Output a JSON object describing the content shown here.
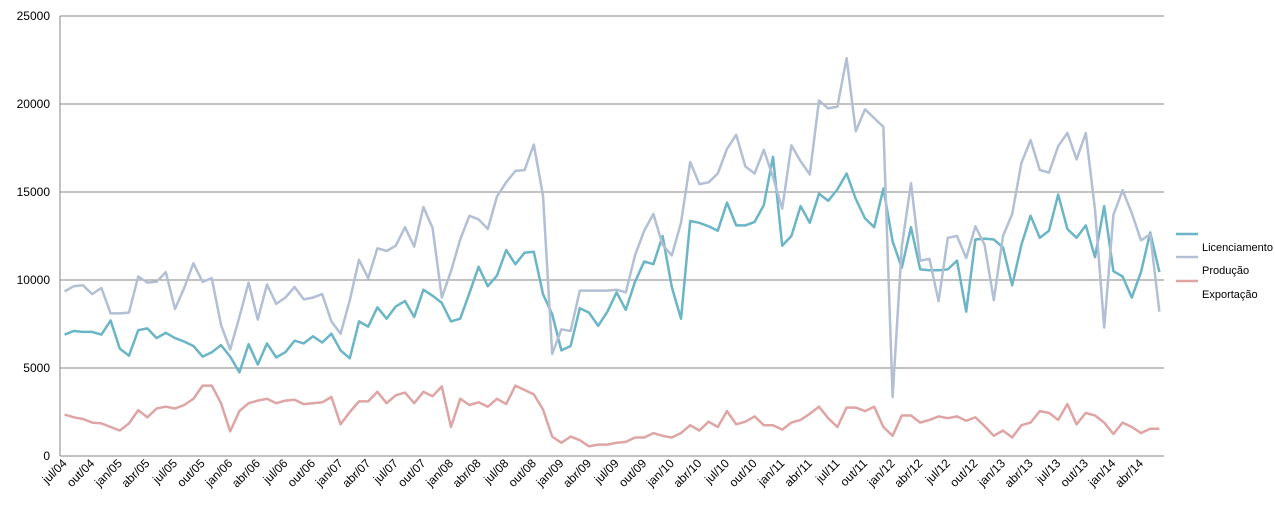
{
  "chart_data": {
    "type": "line",
    "title": "",
    "xlabel": "",
    "ylabel": "",
    "ylim": [
      0,
      25000
    ],
    "yticks": [
      0,
      5000,
      10000,
      15000,
      20000,
      25000
    ],
    "ytick_labels": [
      "0",
      "5000",
      "10000",
      "15000",
      "20000",
      "25000"
    ],
    "grid": "horizontal",
    "legend": "right",
    "xtick_labels": [
      "jul/04",
      "out/04",
      "jan/05",
      "abr/05",
      "jul/05",
      "out/05",
      "jan/06",
      "abr/06",
      "jul/06",
      "out/06",
      "jan/07",
      "abr/07",
      "jul/07",
      "out/07",
      "jan/08",
      "abr/08",
      "jul/08",
      "out/08",
      "jan/09",
      "abr/09",
      "jul/09",
      "out/09",
      "jan/10",
      "abr/10",
      "jul/10",
      "out/10",
      "jan/11",
      "abr/11",
      "jul/11",
      "out/11",
      "jan/12",
      "abr/12",
      "jul/12",
      "out/12",
      "jan/13",
      "abr/13",
      "jul/13",
      "out/13",
      "jan/14",
      "abr/14"
    ],
    "series": [
      {
        "name": "Licenciamento",
        "color": "#6ab5c6",
        "values": [
          6900,
          7100,
          7050,
          7050,
          6900,
          7700,
          6100,
          5700,
          7150,
          7250,
          6700,
          7000,
          6700,
          6500,
          6250,
          5650,
          5900,
          6300,
          5650,
          4750,
          6350,
          5200,
          6400,
          5600,
          5900,
          6550,
          6400,
          6800,
          6450,
          6950,
          6000,
          5550,
          7650,
          7350,
          8450,
          7800,
          8500,
          8800,
          7900,
          9450,
          9100,
          8700,
          7650,
          7800,
          9250,
          10750,
          9650,
          10250,
          11700,
          10900,
          11550,
          11600,
          9200,
          8050,
          6000,
          6250,
          8400,
          8150,
          7400,
          8200,
          9300,
          8300,
          9900,
          11050,
          10900,
          12500,
          9600,
          7800,
          13350,
          13250,
          13050,
          12800,
          14400,
          13100,
          13100,
          13300,
          14250,
          17000,
          11950,
          12500,
          14200,
          13250,
          14900,
          14500,
          15150,
          16050,
          14600,
          13500,
          13000,
          15200,
          12200,
          10700,
          13000,
          10600,
          10550,
          10550,
          10600,
          11100,
          8200,
          12300,
          12350,
          12300,
          11850,
          9700,
          12000,
          13650,
          12400,
          12800,
          14850,
          12900,
          12400,
          13100,
          11300,
          14200,
          10500,
          10200,
          9000,
          10450,
          12700,
          10450
        ]
      },
      {
        "name": "Produção",
        "color": "#b3bfd4",
        "values": [
          9350,
          9650,
          9700,
          9200,
          9550,
          8100,
          8100,
          8150,
          10200,
          9850,
          9900,
          10450,
          8350,
          9550,
          10950,
          9900,
          10100,
          7450,
          6050,
          7900,
          9850,
          7750,
          9750,
          8650,
          9000,
          9600,
          8900,
          9000,
          9200,
          7650,
          6950,
          8850,
          11150,
          10100,
          11800,
          11650,
          11950,
          13000,
          11900,
          14150,
          12950,
          9000,
          10500,
          12300,
          13650,
          13450,
          12900,
          14750,
          15550,
          16200,
          16250,
          17700,
          14800,
          5800,
          7200,
          7100,
          9400,
          9400,
          9400,
          9400,
          9450,
          9300,
          11400,
          12800,
          13750,
          12000,
          11400,
          13250,
          16700,
          15450,
          15550,
          16050,
          17450,
          18250,
          16450,
          16050,
          17400,
          15850,
          14050,
          17650,
          16750,
          16000,
          20200,
          19750,
          19850,
          22600,
          18450,
          19700,
          19200,
          18700,
          3350,
          11900,
          15500,
          11100,
          11200,
          8800,
          12400,
          12500,
          11250,
          13050,
          12000,
          8850,
          12500,
          13750,
          16650,
          17950,
          16250,
          16100,
          17600,
          18350,
          16850,
          18350,
          14000,
          7300,
          13700,
          15100,
          13800,
          12250,
          12600,
          8200
        ]
      },
      {
        "name": "Exportação",
        "color": "#dea5a4",
        "values": [
          2350,
          2200,
          2100,
          1900,
          1850,
          1650,
          1450,
          1850,
          2600,
          2200,
          2700,
          2800,
          2700,
          2900,
          3250,
          4000,
          4000,
          3000,
          1400,
          2550,
          3000,
          3150,
          3250,
          3000,
          3150,
          3200,
          2950,
          3000,
          3050,
          3350,
          1800,
          2500,
          3100,
          3100,
          3650,
          3000,
          3450,
          3600,
          3000,
          3650,
          3400,
          3950,
          1650,
          3250,
          2900,
          3050,
          2800,
          3250,
          2950,
          4000,
          3750,
          3500,
          2650,
          1100,
          750,
          1100,
          900,
          550,
          650,
          650,
          750,
          800,
          1050,
          1050,
          1300,
          1150,
          1050,
          1300,
          1750,
          1450,
          1950,
          1650,
          2550,
          1800,
          1950,
          2250,
          1750,
          1750,
          1500,
          1900,
          2050,
          2400,
          2800,
          2150,
          1650,
          2750,
          2750,
          2550,
          2800,
          1650,
          1150,
          2300,
          2300,
          1900,
          2050,
          2250,
          2150,
          2250,
          2000,
          2200,
          1700,
          1150,
          1450,
          1050,
          1750,
          1900,
          2550,
          2450,
          2050,
          2950,
          1800,
          2450,
          2300,
          1900,
          1250,
          1900,
          1650,
          1300,
          1550,
          1550
        ]
      }
    ]
  }
}
